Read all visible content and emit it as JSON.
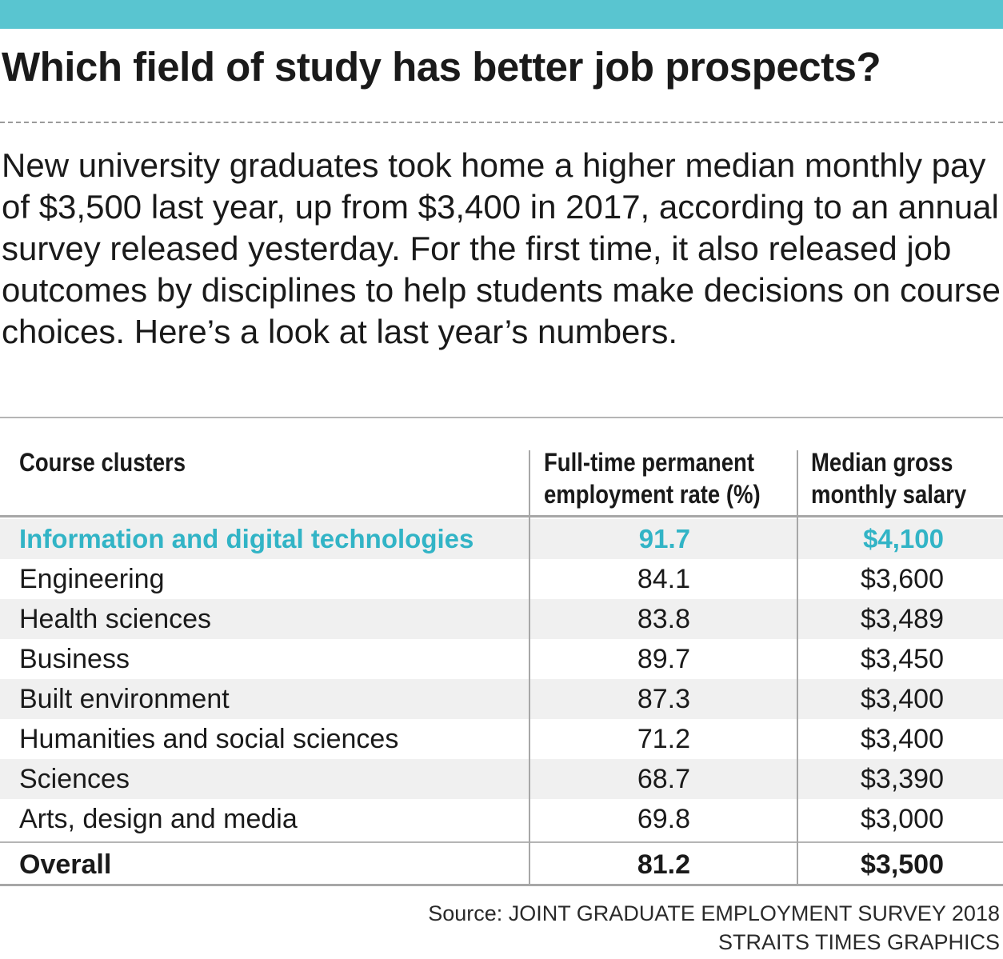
{
  "title": "Which field of study has better job prospects?",
  "intro": "New university graduates took home a higher median monthly pay of $3,500 last year, up from $3,400 in 2017, according to an annual survey released yesterday. For the first time, it also released job outcomes by disciplines to help students make decisions on course choices. Here’s a look at last year’s numbers.",
  "colors": {
    "accent": "#59c5d0",
    "highlight": "#32b4c6",
    "row_shade": "#f0f0f0",
    "rule": "#b5b5b5"
  },
  "chart_data": {
    "type": "table",
    "title": "Which field of study has better job prospects?",
    "columns": {
      "cluster": "Course clusters",
      "rate_line1": "Full-time permanent",
      "rate_line2": "employment rate (%)",
      "salary_line1": "Median gross",
      "salary_line2": "monthly salary"
    },
    "rows": [
      {
        "cluster": "Information and digital technologies",
        "rate": "91.7",
        "salary": "$4,100"
      },
      {
        "cluster": "Engineering",
        "rate": "84.1",
        "salary": "$3,600"
      },
      {
        "cluster": "Health sciences",
        "rate": "83.8",
        "salary": "$3,489"
      },
      {
        "cluster": "Business",
        "rate": "89.7",
        "salary": "$3,450"
      },
      {
        "cluster": "Built environment",
        "rate": "87.3",
        "salary": "$3,400"
      },
      {
        "cluster": "Humanities and social sciences",
        "rate": "71.2",
        "salary": "$3,400"
      },
      {
        "cluster": "Sciences",
        "rate": "68.7",
        "salary": "$3,390"
      },
      {
        "cluster": "Arts, design and media",
        "rate": "69.8",
        "salary": "$3,000"
      }
    ],
    "overall": {
      "cluster": "Overall",
      "rate": "81.2",
      "salary": "$3,500"
    }
  },
  "source": {
    "line1": "Source: JOINT GRADUATE EMPLOYMENT SURVEY 2018",
    "line2": "STRAITS TIMES GRAPHICS"
  }
}
